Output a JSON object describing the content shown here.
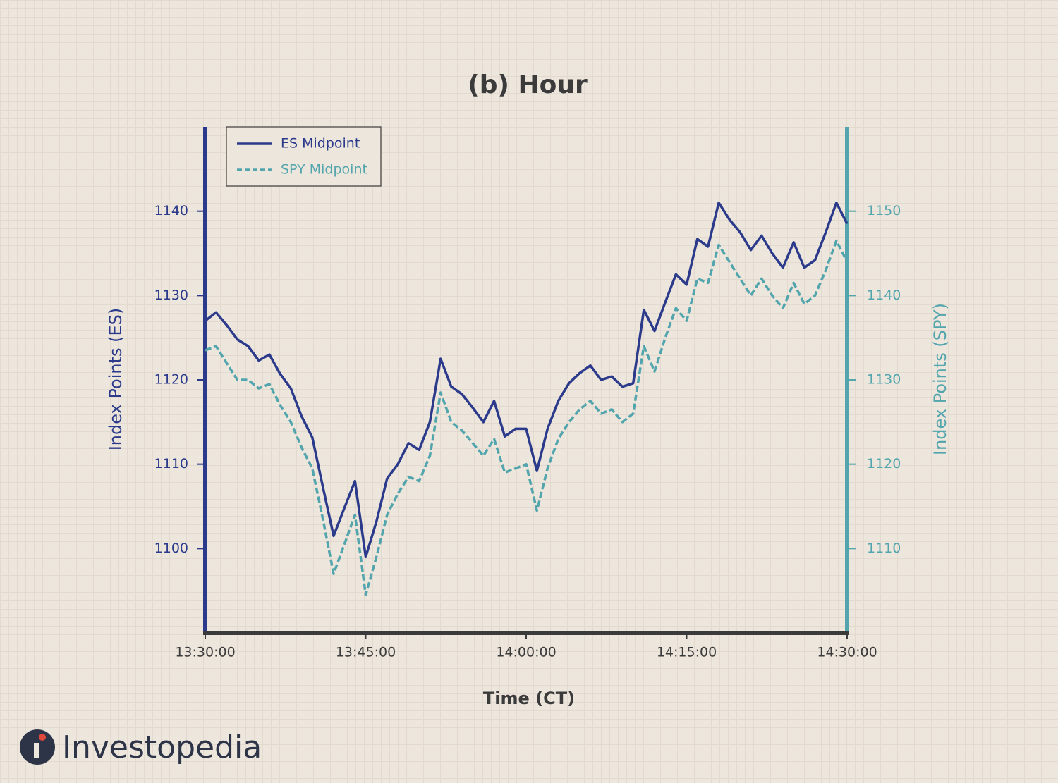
{
  "chart_data": {
    "type": "line",
    "title": "(b) Hour",
    "xlabel": "Time (CT)",
    "ylabel": "Index Points (ES)",
    "y2label": "Index Points (SPY)",
    "x": [
      "13:30:00",
      "13:31:00",
      "13:32:00",
      "13:33:00",
      "13:34:00",
      "13:35:00",
      "13:36:00",
      "13:37:00",
      "13:38:00",
      "13:39:00",
      "13:40:00",
      "13:41:00",
      "13:42:00",
      "13:43:00",
      "13:44:00",
      "13:45:00",
      "13:46:00",
      "13:47:00",
      "13:48:00",
      "13:49:00",
      "13:50:00",
      "13:51:00",
      "13:52:00",
      "13:53:00",
      "13:54:00",
      "13:55:00",
      "13:56:00",
      "13:57:00",
      "13:58:00",
      "13:59:00",
      "14:00:00",
      "14:01:00",
      "14:02:00",
      "14:03:00",
      "14:04:00",
      "14:05:00",
      "14:06:00",
      "14:07:00",
      "14:08:00",
      "14:09:00",
      "14:10:00",
      "14:11:00",
      "14:12:00",
      "14:13:00",
      "14:14:00",
      "14:15:00",
      "14:16:00",
      "14:17:00",
      "14:18:00",
      "14:19:00",
      "14:20:00",
      "14:21:00",
      "14:22:00",
      "14:23:00",
      "14:24:00",
      "14:25:00",
      "14:26:00",
      "14:27:00",
      "14:28:00",
      "14:29:00",
      "14:30:00"
    ],
    "series": [
      {
        "name": "ES Midpoint",
        "color": "#2b3a8a",
        "style": "solid",
        "values": [
          1127,
          1128,
          1126.5,
          1124.8,
          1124,
          1122.3,
          1123,
          1120.7,
          1119,
          1115.7,
          1113.2,
          1107.3,
          1101.5,
          1104.8,
          1108,
          1099,
          1103.2,
          1108.3,
          1110,
          1112.5,
          1111.7,
          1115,
          1122.5,
          1119.2,
          1118.3,
          1116.7,
          1115,
          1117.5,
          1113.3,
          1114.2,
          1114.2,
          1109.2,
          1114.2,
          1117.5,
          1119.6,
          1120.8,
          1121.7,
          1120,
          1120.4,
          1119.2,
          1119.6,
          1128.3,
          1125.8,
          1129.2,
          1132.5,
          1131.3,
          1136.7,
          1135.8,
          1141,
          1139,
          1137.5,
          1135.4,
          1137.1,
          1135,
          1133.3,
          1136.3,
          1133.3,
          1134.2,
          1137.5,
          1141,
          1138.5
        ]
      },
      {
        "name": "SPY Midpoint",
        "color": "#52a5ad",
        "style": "dashed",
        "axis": "y2",
        "values": [
          1133.5,
          1134,
          1132,
          1130,
          1130,
          1129,
          1129.5,
          1127,
          1125,
          1122,
          1119.5,
          1113.5,
          1107,
          1110.5,
          1114,
          1104.5,
          1109,
          1114,
          1116.5,
          1118.5,
          1118,
          1121,
          1128.5,
          1125,
          1124,
          1122.5,
          1121,
          1123,
          1119,
          1119.5,
          1120,
          1114.5,
          1119.5,
          1123,
          1125,
          1126.5,
          1127.5,
          1126,
          1126.5,
          1125,
          1126,
          1134,
          1131,
          1135,
          1138.5,
          1137,
          1142,
          1141.5,
          1146,
          1144,
          1142,
          1140,
          1142,
          1140,
          1138.5,
          1141.5,
          1139,
          1140,
          1143,
          1146.5,
          1144
        ]
      }
    ],
    "xlim": [
      "13:30:00",
      "14:30:00"
    ],
    "xticks": [
      "13:30:00",
      "13:45:00",
      "14:00:00",
      "14:15:00",
      "14:30:00"
    ],
    "ylim": [
      1090,
      1150
    ],
    "yticks": [
      1100,
      1110,
      1120,
      1130,
      1140
    ],
    "y2lim": [
      1100,
      1160
    ],
    "y2ticks": [
      1110,
      1120,
      1130,
      1140,
      1150
    ],
    "legend": "upper left",
    "grid": false
  },
  "brand": "Investopedia"
}
